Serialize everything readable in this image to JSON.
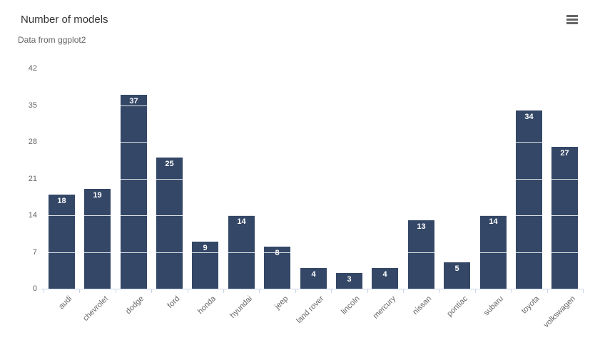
{
  "header": {
    "title": "Number of models",
    "subtitle": "Data from ggplot2",
    "menu_button": {
      "icon": "hamburger-menu-icon"
    }
  },
  "colors": {
    "bar": "#344767",
    "gridline": "rgba(255,255,255,0.85)",
    "axis": "#ccd6eb",
    "title_text": "#333333",
    "muted_text": "#666666",
    "data_label": "#ffffff",
    "menu_icon": "#666666",
    "background": "#ffffff"
  },
  "chart_data": {
    "type": "bar",
    "title": "Number of models",
    "subtitle": "Data from ggplot2",
    "categories": [
      "audi",
      "chevrolet",
      "dodge",
      "ford",
      "honda",
      "hyundai",
      "jeep",
      "land rover",
      "lincoln",
      "mercury",
      "nissan",
      "pontiac",
      "subaru",
      "toyota",
      "volkswagen"
    ],
    "values": [
      18,
      19,
      37,
      25,
      9,
      14,
      8,
      4,
      3,
      4,
      13,
      5,
      14,
      34,
      27
    ],
    "xlabel": "",
    "ylabel": "",
    "ylim": [
      0,
      42
    ],
    "yticks": [
      0,
      7,
      14,
      21,
      28,
      35,
      42
    ],
    "grid": "white gridlines drawn over bars, horizontal only",
    "legend": "none",
    "data_labels": "value shown in white inside top of each bar",
    "x_label_rotation": -45
  }
}
